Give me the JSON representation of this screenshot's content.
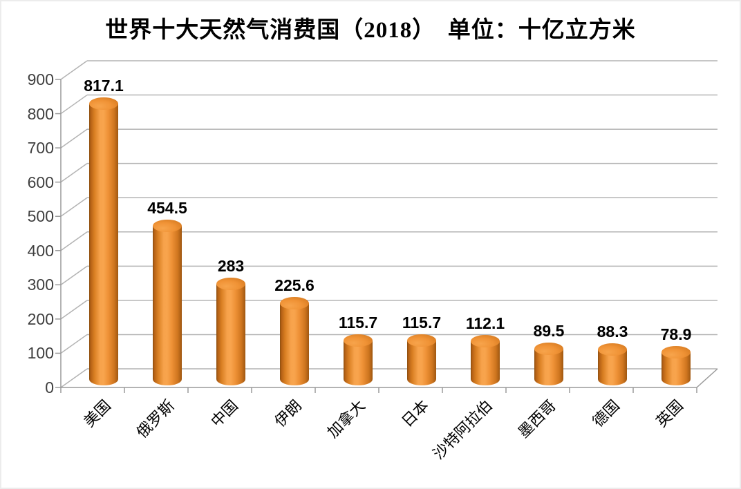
{
  "title": "世界十大天然气消费国（2018）　单位：十亿立方米",
  "chart_data": {
    "type": "bar",
    "style": "3d-cylinder",
    "title": "世界十大天然气消费国（2018）",
    "unit_label": "单位：十亿立方米",
    "categories": [
      "美国",
      "俄罗斯",
      "中国",
      "伊朗",
      "加拿大",
      "日本",
      "沙特阿拉伯",
      "墨西哥",
      "德国",
      "英国"
    ],
    "values": [
      817.1,
      454.5,
      283,
      225.6,
      115.7,
      115.7,
      112.1,
      89.5,
      88.3,
      78.9
    ],
    "value_labels": [
      "817.1",
      "454.5",
      "283",
      "225.6",
      "115.7",
      "115.7",
      "112.1",
      "89.5",
      "88.3",
      "78.9"
    ],
    "ylim": [
      0,
      900
    ],
    "ytick_step": 100,
    "ytick_labels": [
      "0",
      "100",
      "200",
      "300",
      "400",
      "500",
      "600",
      "700",
      "800",
      "900"
    ],
    "grid": true,
    "legend": false,
    "xlabel": "",
    "ylabel": "",
    "colors": {
      "bar_main": "#EF9336",
      "bar_highlight": "#F8A44D",
      "bar_shadow": "#9F5711",
      "grid_color": "#b3b3b3",
      "axis_color": "#9a9a9a",
      "ytick_label_color": "#3f3f3f",
      "value_label_color": "#000000",
      "category_label_color": "#000000",
      "background": "#ffffff"
    }
  }
}
